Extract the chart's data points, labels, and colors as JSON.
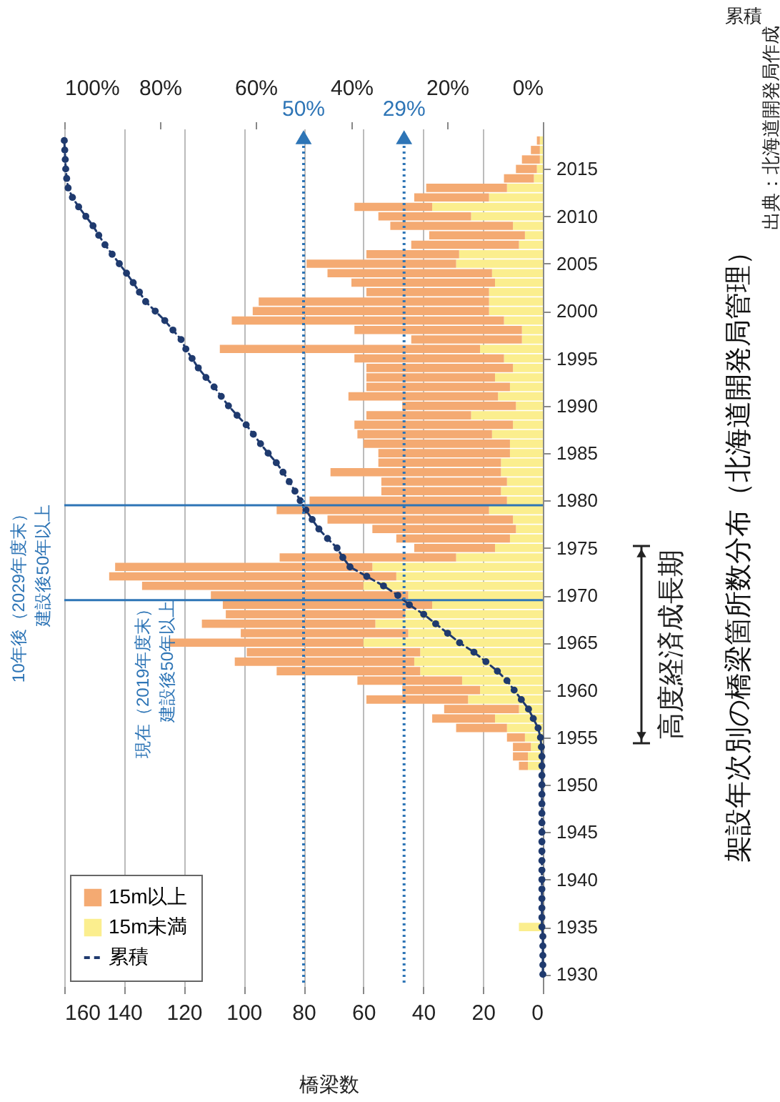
{
  "chart_data": {
    "type": "bar",
    "orientation": "horizontal",
    "title": "架設年次別の橋梁箇所数分布（北海道開発局管理）",
    "xlabel": "橋梁数",
    "x2label": "累積",
    "annotations": [
      "出典：北海道開発局作成",
      "建設後50年以上",
      "建設後50年以上",
      "高度経済成長期"
    ],
    "x": [
      1930,
      1931,
      1932,
      1933,
      1934,
      1935,
      1936,
      1937,
      1938,
      1939,
      1940,
      1941,
      1942,
      1943,
      1944,
      1945,
      1946,
      1947,
      1948,
      1949,
      1950,
      1951,
      1952,
      1953,
      1954,
      1955,
      1956,
      1957,
      1958,
      1959,
      1960,
      1961,
      1962,
      1963,
      1964,
      1965,
      1966,
      1967,
      1968,
      1969,
      1970,
      1971,
      1972,
      1973,
      1974,
      1975,
      1976,
      1977,
      1978,
      1979,
      1980,
      1981,
      1982,
      1983,
      1984,
      1985,
      1986,
      1987,
      1988,
      1989,
      1990,
      1991,
      1992,
      1993,
      1994,
      1995,
      1996,
      1997,
      1998,
      1999,
      2000,
      2001,
      2002,
      2003,
      2004,
      2005,
      2006,
      2007,
      2008,
      2009,
      2010,
      2011,
      2012,
      2013,
      2014,
      2015,
      2016,
      2017,
      2018
    ],
    "stacked": true,
    "series": [
      {
        "name": "15m未満",
        "color": "#fbee8e",
        "values": [
          0,
          0,
          0,
          0,
          0,
          8,
          0,
          0,
          0,
          0,
          0,
          0,
          0,
          0,
          0,
          0,
          0,
          0,
          0,
          0,
          0,
          0,
          5,
          5,
          4,
          6,
          12,
          16,
          8,
          25,
          21,
          27,
          41,
          43,
          41,
          60,
          45,
          56,
          46,
          37,
          45,
          60,
          49,
          57,
          29,
          16,
          11,
          9,
          10,
          18,
          12,
          14,
          12,
          14,
          14,
          11,
          11,
          17,
          10,
          24,
          9,
          15,
          11,
          16,
          10,
          13,
          21,
          7,
          7,
          13,
          18,
          18,
          18,
          16,
          17,
          29,
          28,
          8,
          6,
          10,
          24,
          37,
          18,
          12,
          3,
          2,
          1,
          1,
          1
        ]
      },
      {
        "name": "15m以上",
        "color": "#f4aa72",
        "values": [
          0,
          0,
          0,
          0,
          0,
          0,
          0,
          0,
          0,
          0,
          0,
          0,
          0,
          0,
          0,
          0,
          0,
          0,
          0,
          0,
          0,
          0,
          3,
          5,
          6,
          6,
          17,
          21,
          25,
          34,
          26,
          35,
          48,
          60,
          58,
          65,
          56,
          58,
          60,
          70,
          66,
          74,
          96,
          86,
          59,
          27,
          38,
          48,
          62,
          71,
          66,
          40,
          42,
          57,
          41,
          44,
          49,
          45,
          53,
          35,
          38,
          50,
          48,
          43,
          49,
          50,
          87,
          37,
          56,
          91,
          79,
          77,
          41,
          48,
          55,
          50,
          31,
          36,
          32,
          41,
          31,
          26,
          25,
          27,
          10,
          7,
          6,
          3,
          1
        ]
      },
      {
        "name": "累積",
        "type": "line",
        "axis": "x2",
        "color": "#1f3a6e",
        "values": [
          0,
          0,
          0,
          0,
          0,
          0.2,
          0.2,
          0.2,
          0.2,
          0.2,
          0.2,
          0.2,
          0.2,
          0.2,
          0.2,
          0.2,
          0.2,
          0.2,
          0.2,
          0.2,
          0.2,
          0.2,
          0.2,
          0.2,
          0.3,
          0.5,
          1,
          2,
          3,
          4.5,
          6,
          7.5,
          9.5,
          11.9,
          14.4,
          17.4,
          19.9,
          22.4,
          24.9,
          27.9,
          30.3,
          33.3,
          36.8,
          40.3,
          41.8,
          43,
          45,
          46.8,
          48.2,
          49.5,
          50.7,
          51.8,
          53,
          54.3,
          55.7,
          57.4,
          59,
          60.5,
          62,
          63.9,
          65.7,
          67.2,
          68.7,
          70.4,
          72,
          73.3,
          74.6,
          75.6,
          77.3,
          79,
          81,
          83,
          84.3,
          85.6,
          87,
          88.5,
          90,
          91.5,
          92.8,
          94,
          95.5,
          97,
          98.3,
          99.2,
          99.5,
          99.7,
          99.8,
          99.9,
          100
        ]
      }
    ],
    "ylim": [
      1929.5,
      2018.5
    ],
    "yticks": [
      1930,
      1935,
      1940,
      1945,
      1950,
      1955,
      1960,
      1965,
      1970,
      1975,
      1980,
      1985,
      1990,
      1995,
      2000,
      2005,
      2010,
      2015
    ],
    "xlim": [
      160,
      0
    ],
    "xticks": [
      0,
      20,
      40,
      60,
      80,
      100,
      120,
      140,
      160
    ],
    "x2lim": [
      100,
      0
    ],
    "x2ticks": [
      {
        "value": 0,
        "label": "0%"
      },
      {
        "value": 20,
        "label": "20%"
      },
      {
        "value": 40,
        "label": "40%"
      },
      {
        "value": 60,
        "label": "60%"
      },
      {
        "value": 80,
        "label": "80%"
      },
      {
        "value": 100,
        "label": "100%"
      }
    ],
    "ref_lines": [
      {
        "axis": "y",
        "value": 1969.5,
        "label": "現在（2019年度末）",
        "color": "#2e75b6",
        "line_style": "solid"
      },
      {
        "axis": "y",
        "value": 1979.5,
        "label": "10年後（2029年度末）",
        "color": "#2e75b6",
        "line_style": "solid"
      },
      {
        "axis": "x2",
        "value": 50,
        "label": "50%",
        "color": "#2e75b6",
        "line_style": "dotted"
      },
      {
        "axis": "x2",
        "value": 29,
        "label": "29%",
        "color": "#2e75b6",
        "line_style": "dotted"
      }
    ],
    "grid": "x",
    "legend": "bottom left",
    "marker": "circle",
    "line_style": "dashed"
  }
}
